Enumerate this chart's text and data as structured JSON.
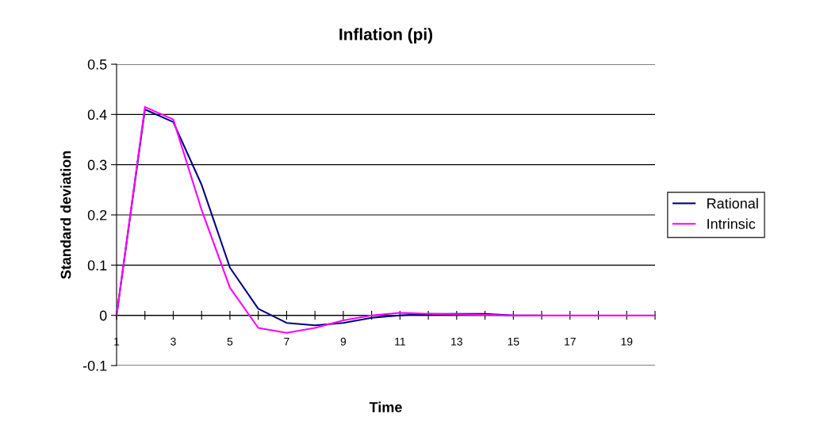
{
  "chart_data": {
    "type": "line",
    "title": "Inflation (pi)",
    "xlabel": "Time",
    "ylabel": "Standard deviation",
    "categories": [
      "1",
      null,
      "3",
      null,
      "5",
      null,
      "7",
      null,
      "9",
      null,
      "11",
      null,
      "13",
      null,
      "15",
      null,
      "17",
      null,
      "19",
      null
    ],
    "series": [
      {
        "name": "Rational",
        "color": "#000080",
        "values": [
          0,
          0.41,
          0.385,
          0.26,
          0.095,
          0.013,
          -0.015,
          -0.02,
          -0.015,
          -0.005,
          0,
          0.003,
          0.003,
          0.003,
          0,
          0,
          null,
          null,
          null,
          null
        ]
      },
      {
        "name": "Intrinsic",
        "color": "#ff00ff",
        "values": [
          0,
          0.415,
          0.39,
          0.21,
          0.055,
          -0.025,
          -0.035,
          -0.025,
          -0.01,
          0,
          0.005,
          0.003,
          0.002,
          0.001,
          0,
          0,
          0,
          0,
          0,
          0
        ]
      }
    ],
    "ylim": [
      -0.1,
      0.5
    ],
    "yticks": [
      -0.1,
      0,
      0.1,
      0.2,
      0.3,
      0.4,
      0.5
    ],
    "grid": "y",
    "legend": "right",
    "marker": "none",
    "line_style": "solid"
  }
}
